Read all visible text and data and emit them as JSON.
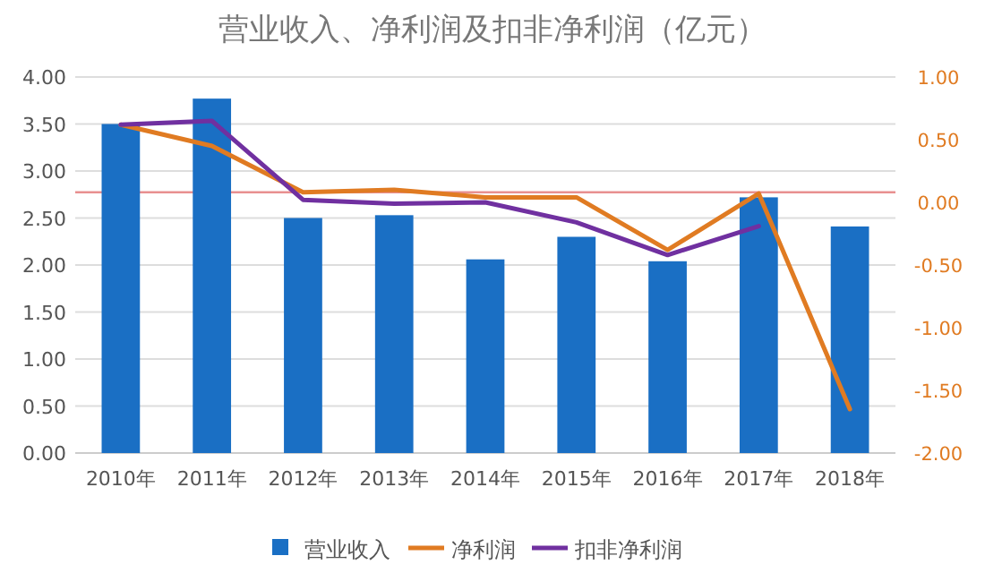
{
  "chart_data": {
    "type": "bar",
    "title": "营业收入、净利润及扣非净利润（亿元）",
    "categories": [
      "2010年",
      "2011年",
      "2012年",
      "2013年",
      "2014年",
      "2015年",
      "2016年",
      "2017年",
      "2018年"
    ],
    "series": [
      {
        "name": "营业收入",
        "color": "#1a6fc4",
        "values": [
          3.5,
          3.77,
          2.5,
          2.53,
          2.06,
          2.3,
          2.04,
          2.72,
          2.41
        ]
      },
      {
        "name": "净利润",
        "type": "line",
        "axis": "y2",
        "color": "#e07b22",
        "values": [
          0.62,
          0.45,
          0.08,
          0.1,
          0.04,
          0.04,
          -0.38,
          0.07,
          -1.65
        ]
      },
      {
        "name": "扣非净利润",
        "type": "line",
        "axis": "y2",
        "color": "#7030a0",
        "values": [
          0.62,
          0.65,
          0.02,
          -0.01,
          0.0,
          -0.16,
          -0.42,
          -0.19,
          null
        ]
      }
    ],
    "ylim": [
      0,
      4
    ],
    "yticks": [
      {
        "value": 0,
        "label": "0.00"
      },
      {
        "value": 0.5,
        "label": "0.50"
      },
      {
        "value": 1,
        "label": "1.00"
      },
      {
        "value": 1.5,
        "label": "1.50"
      },
      {
        "value": 2,
        "label": "2.00"
      },
      {
        "value": 2.5,
        "label": "2.50"
      },
      {
        "value": 3,
        "label": "3.00"
      },
      {
        "value": 3.5,
        "label": "3.50"
      },
      {
        "value": 4,
        "label": "4.00"
      }
    ],
    "y2lim": [
      -2,
      1
    ],
    "y2ticks": [
      {
        "value": -2,
        "label": "-2.00"
      },
      {
        "value": -1.5,
        "label": "-1.50"
      },
      {
        "value": -1,
        "label": "-1.00"
      },
      {
        "value": -0.5,
        "label": "-0.50"
      },
      {
        "value": 0,
        "label": "0.00"
      },
      {
        "value": 0.5,
        "label": "0.50"
      },
      {
        "value": 1,
        "label": "1.00"
      }
    ],
    "ref_lines": [
      {
        "axis": "y2",
        "value": 0.08,
        "color": "#e89090"
      }
    ],
    "grid": "y",
    "legend": "bottom"
  }
}
